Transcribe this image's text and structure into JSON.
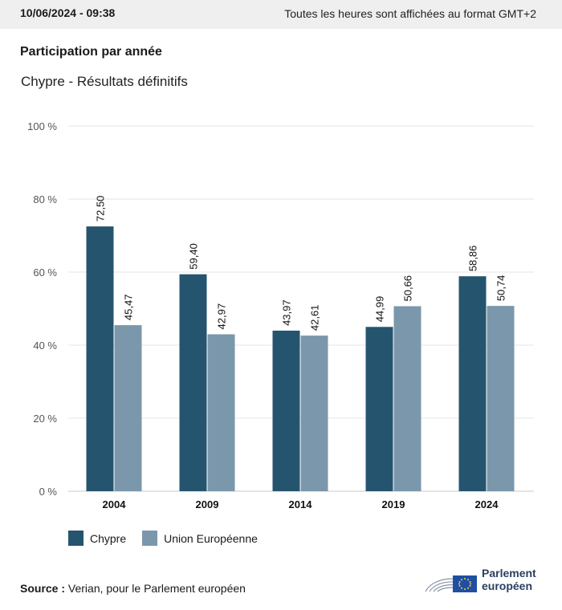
{
  "header": {
    "datetime": "10/06/2024 - 09:38",
    "timezone_note": "Toutes les heures sont affichées au format GMT+2"
  },
  "title": "Participation par année",
  "subtitle": "Chypre - Résultats définitifs",
  "chart_data": {
    "type": "bar",
    "categories": [
      "2004",
      "2009",
      "2014",
      "2019",
      "2024"
    ],
    "series": [
      {
        "name": "Chypre",
        "color": "#25546f",
        "values": [
          72.5,
          59.4,
          43.97,
          44.99,
          58.86
        ],
        "labels": [
          "72,50",
          "59,40",
          "43,97",
          "44,99",
          "58,86"
        ]
      },
      {
        "name": "Union Européenne",
        "color": "#7b97ab",
        "values": [
          45.47,
          42.97,
          42.61,
          50.66,
          50.74
        ],
        "labels": [
          "45,47",
          "42,97",
          "42,61",
          "50,66",
          "50,74"
        ]
      }
    ],
    "ylim": [
      0,
      100
    ],
    "yticks": [
      0,
      20,
      40,
      60,
      80,
      100
    ],
    "ytick_labels": [
      "0 %",
      "20 %",
      "40 %",
      "60 %",
      "80 %",
      "100 %"
    ],
    "grid": true,
    "legend_position": "bottom-left"
  },
  "legend": {
    "items": [
      {
        "label": "Chypre",
        "color": "#25546f"
      },
      {
        "label": "Union Européenne",
        "color": "#7b97ab"
      }
    ]
  },
  "footer": {
    "source_label": "Source :",
    "source_text": "Verian, pour le Parlement européen",
    "logo_line1": "Parlement",
    "logo_line2": "européen"
  }
}
